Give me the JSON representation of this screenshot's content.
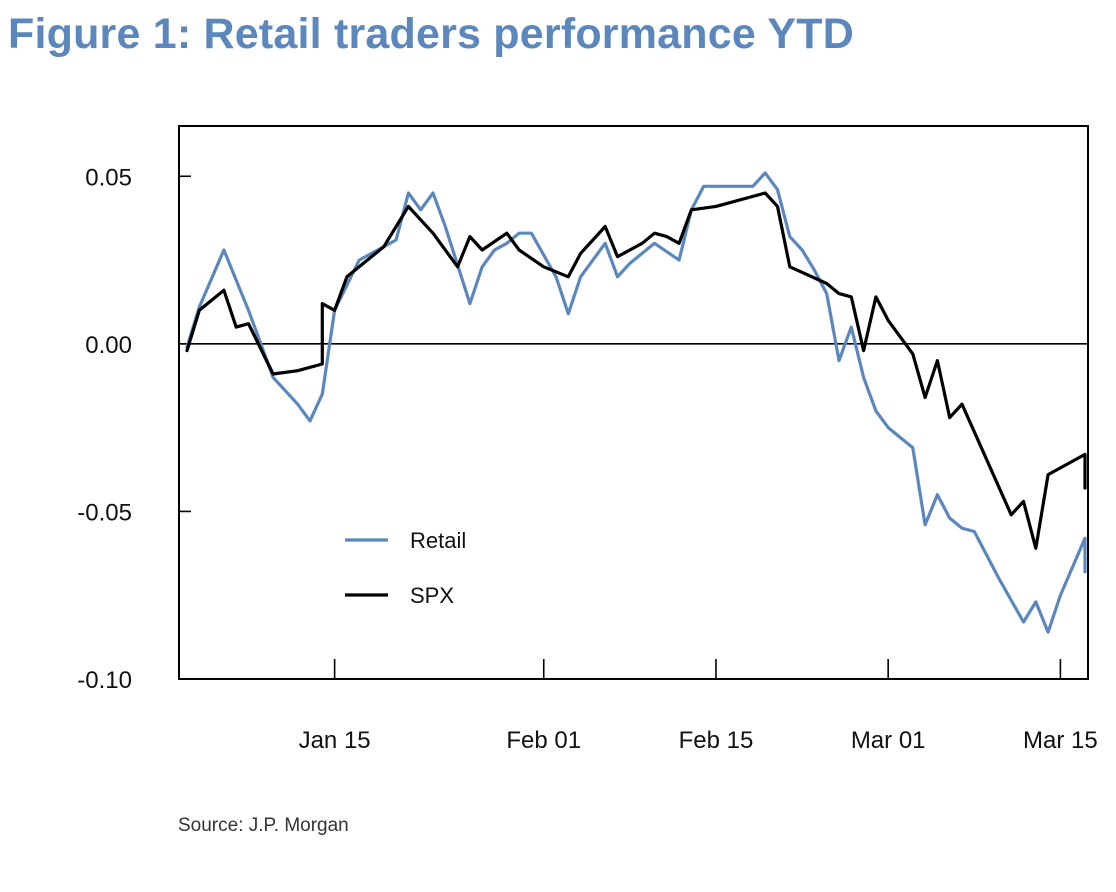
{
  "figure": {
    "title": "Figure 1: Retail traders performance YTD",
    "source": "Source: J.P. Morgan"
  },
  "colors": {
    "title": "#5b87bc",
    "retail": "#5b87bc",
    "spx": "#000000",
    "axis": "#000000"
  },
  "chart_data": {
    "type": "line",
    "title": "",
    "xlabel": "",
    "ylabel": "",
    "ylim": [
      -0.1,
      0.065
    ],
    "yticks": [
      -0.1,
      -0.05,
      0.0,
      0.05
    ],
    "ytick_labels": [
      "-0.10",
      "-0.05",
      "0.00",
      "0.05"
    ],
    "xlim": [
      "2023-01-03",
      "2023-03-17"
    ],
    "xticks": [
      "2023-01-15",
      "2023-02-01",
      "2023-02-15",
      "2023-03-01",
      "2023-03-15"
    ],
    "xtick_labels": [
      "Jan 15",
      "Feb 01",
      "Feb 15",
      "Mar 01",
      "Mar 15"
    ],
    "zero_line": true,
    "grid": false,
    "legend": "bottom-left",
    "series": [
      {
        "name": "Retail",
        "color": "#5b87bc",
        "points": [
          [
            "2023-01-03",
            -0.001
          ],
          [
            "2023-01-04",
            0.011
          ],
          [
            "2023-01-06",
            0.028
          ],
          [
            "2023-01-08",
            0.01
          ],
          [
            "2023-01-10",
            -0.01
          ],
          [
            "2023-01-12",
            -0.018
          ],
          [
            "2023-01-13",
            -0.023
          ],
          [
            "2023-01-14",
            -0.015
          ],
          [
            "2023-01-15",
            0.01
          ],
          [
            "2023-01-17",
            0.025
          ],
          [
            "2023-01-20",
            0.031
          ],
          [
            "2023-01-21",
            0.045
          ],
          [
            "2023-01-22",
            0.04
          ],
          [
            "2023-01-23",
            0.045
          ],
          [
            "2023-01-24",
            0.035
          ],
          [
            "2023-01-26",
            0.012
          ],
          [
            "2023-01-27",
            0.023
          ],
          [
            "2023-01-28",
            0.028
          ],
          [
            "2023-01-29",
            0.03
          ],
          [
            "2023-01-30",
            0.033
          ],
          [
            "2023-01-31",
            0.033
          ],
          [
            "2023-02-02",
            0.02
          ],
          [
            "2023-02-03",
            0.009
          ],
          [
            "2023-02-04",
            0.02
          ],
          [
            "2023-02-05",
            0.025
          ],
          [
            "2023-02-06",
            0.03
          ],
          [
            "2023-02-07",
            0.02
          ],
          [
            "2023-02-08",
            0.024
          ],
          [
            "2023-02-10",
            0.03
          ],
          [
            "2023-02-12",
            0.025
          ],
          [
            "2023-02-13",
            0.04
          ],
          [
            "2023-02-14",
            0.047
          ],
          [
            "2023-02-18",
            0.047
          ],
          [
            "2023-02-19",
            0.051
          ],
          [
            "2023-02-20",
            0.046
          ],
          [
            "2023-02-21",
            0.032
          ],
          [
            "2023-02-22",
            0.028
          ],
          [
            "2023-02-23",
            0.022
          ],
          [
            "2023-02-24",
            0.015
          ],
          [
            "2023-02-25",
            -0.005
          ],
          [
            "2023-02-26",
            0.005
          ],
          [
            "2023-02-27",
            -0.01
          ],
          [
            "2023-02-28",
            -0.02
          ],
          [
            "2023-03-01",
            -0.025
          ],
          [
            "2023-03-03",
            -0.031
          ],
          [
            "2023-03-04",
            -0.054
          ],
          [
            "2023-03-05",
            -0.045
          ],
          [
            "2023-03-06",
            -0.052
          ],
          [
            "2023-03-07",
            -0.055
          ],
          [
            "2023-03-08",
            -0.056
          ],
          [
            "2023-03-10",
            -0.07
          ],
          [
            "2023-03-12",
            -0.083
          ],
          [
            "2023-03-13",
            -0.077
          ],
          [
            "2023-03-14",
            -0.086
          ],
          [
            "2023-03-15",
            -0.075
          ],
          [
            "2023-03-17",
            -0.058
          ],
          [
            "2023-03-17",
            -0.068
          ]
        ]
      },
      {
        "name": "SPX",
        "color": "#000000",
        "points": [
          [
            "2023-01-03",
            -0.002
          ],
          [
            "2023-01-04",
            0.01
          ],
          [
            "2023-01-06",
            0.016
          ],
          [
            "2023-01-07",
            0.005
          ],
          [
            "2023-01-08",
            0.006
          ],
          [
            "2023-01-10",
            -0.009
          ],
          [
            "2023-01-12",
            -0.008
          ],
          [
            "2023-01-14",
            -0.006
          ],
          [
            "2023-01-14",
            0.012
          ],
          [
            "2023-01-15",
            0.01
          ],
          [
            "2023-01-16",
            0.02
          ],
          [
            "2023-01-19",
            0.029
          ],
          [
            "2023-01-21",
            0.041
          ],
          [
            "2023-01-23",
            0.033
          ],
          [
            "2023-01-25",
            0.023
          ],
          [
            "2023-01-26",
            0.032
          ],
          [
            "2023-01-27",
            0.028
          ],
          [
            "2023-01-29",
            0.033
          ],
          [
            "2023-01-30",
            0.028
          ],
          [
            "2023-02-01",
            0.023
          ],
          [
            "2023-02-03",
            0.02
          ],
          [
            "2023-02-04",
            0.027
          ],
          [
            "2023-02-06",
            0.035
          ],
          [
            "2023-02-07",
            0.026
          ],
          [
            "2023-02-09",
            0.03
          ],
          [
            "2023-02-10",
            0.033
          ],
          [
            "2023-02-11",
            0.032
          ],
          [
            "2023-02-12",
            0.03
          ],
          [
            "2023-02-13",
            0.04
          ],
          [
            "2023-02-15",
            0.041
          ],
          [
            "2023-02-19",
            0.045
          ],
          [
            "2023-02-20",
            0.041
          ],
          [
            "2023-02-21",
            0.023
          ],
          [
            "2023-02-24",
            0.018
          ],
          [
            "2023-02-25",
            0.015
          ],
          [
            "2023-02-26",
            0.014
          ],
          [
            "2023-02-27",
            -0.002
          ],
          [
            "2023-02-28",
            0.014
          ],
          [
            "2023-03-01",
            0.007
          ],
          [
            "2023-03-03",
            -0.003
          ],
          [
            "2023-03-04",
            -0.016
          ],
          [
            "2023-03-05",
            -0.005
          ],
          [
            "2023-03-06",
            -0.022
          ],
          [
            "2023-03-07",
            -0.018
          ],
          [
            "2023-03-11",
            -0.051
          ],
          [
            "2023-03-12",
            -0.047
          ],
          [
            "2023-03-13",
            -0.061
          ],
          [
            "2023-03-14",
            -0.039
          ],
          [
            "2023-03-17",
            -0.033
          ],
          [
            "2023-03-17",
            -0.043
          ]
        ]
      }
    ]
  }
}
